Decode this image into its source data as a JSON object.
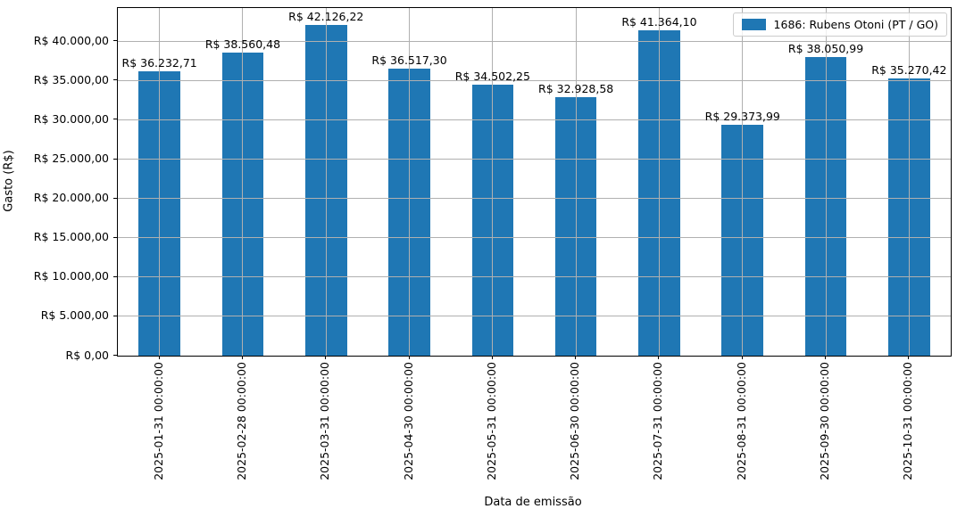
{
  "figure": {
    "background": "#ffffff",
    "bar_color": "#1f77b4",
    "grid_color": "#b0b0b0",
    "spine_color": "#000000"
  },
  "chart_data": {
    "type": "bar",
    "title": "",
    "xlabel": "Data de emissão",
    "ylabel": "Gasto (R$)",
    "categories": [
      "2025-01-31 00:00:00",
      "2025-02-28 00:00:00",
      "2025-03-31 00:00:00",
      "2025-04-30 00:00:00",
      "2025-05-31 00:00:00",
      "2025-06-30 00:00:00",
      "2025-07-31 00:00:00",
      "2025-08-31 00:00:00",
      "2025-09-30 00:00:00",
      "2025-10-31 00:00:00"
    ],
    "values": [
      36232.71,
      38560.48,
      42126.22,
      36517.3,
      34502.25,
      32928.58,
      41364.1,
      29373.99,
      38050.99,
      35270.42
    ],
    "bar_labels": [
      "R$ 36.232,71",
      "R$ 38.560,48",
      "R$ 42.126,22",
      "R$ 36.517,30",
      "R$ 34.502,25",
      "R$ 32.928,58",
      "R$ 41.364,10",
      "R$ 29.373,99",
      "R$ 38.050,99",
      "R$ 35.270,42"
    ],
    "ylim": [
      0,
      44232.53
    ],
    "ytick_values": [
      0,
      5000,
      10000,
      15000,
      20000,
      25000,
      30000,
      35000,
      40000
    ],
    "ytick_labels": [
      "R$ 0,00",
      "R$ 5.000,00",
      "R$ 10.000,00",
      "R$ 15.000,00",
      "R$ 20.000,00",
      "R$ 25.000,00",
      "R$ 30.000,00",
      "R$ 35.000,00",
      "R$ 40.000,00"
    ],
    "grid": true,
    "legend": {
      "position": "upper right",
      "entries": [
        {
          "label": "1686: Rubens Otoni (PT / GO)",
          "color": "#1f77b4"
        }
      ]
    }
  }
}
